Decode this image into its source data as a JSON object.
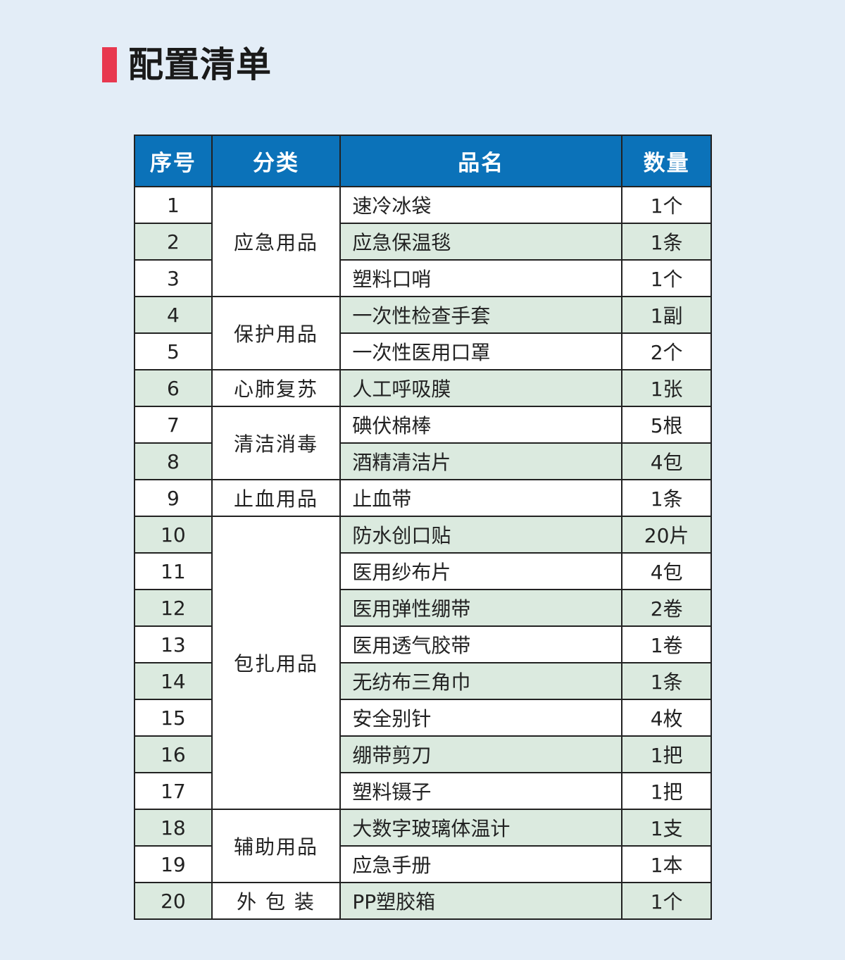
{
  "title": "配置清单",
  "colors": {
    "accent_red": "#e8384f",
    "header_blue": "#0b72b9",
    "row_green": "#dbeadf",
    "background": "#e3edf7"
  },
  "table": {
    "headers": [
      "序号",
      "分类",
      "品名",
      "数量"
    ],
    "groups": [
      {
        "category": "应急用品",
        "rows": [
          {
            "no": "1",
            "name": "速冷冰袋",
            "qty": "1个"
          },
          {
            "no": "2",
            "name": "应急保温毯",
            "qty": "1条"
          },
          {
            "no": "3",
            "name": "塑料口哨",
            "qty": "1个"
          }
        ]
      },
      {
        "category": "保护用品",
        "rows": [
          {
            "no": "4",
            "name": "一次性检查手套",
            "qty": "1副"
          },
          {
            "no": "5",
            "name": "一次性医用口罩",
            "qty": "2个"
          }
        ]
      },
      {
        "category": "心肺复苏",
        "rows": [
          {
            "no": "6",
            "name": "人工呼吸膜",
            "qty": "1张"
          }
        ]
      },
      {
        "category": "清洁消毒",
        "rows": [
          {
            "no": "7",
            "name": "碘伏棉棒",
            "qty": "5根"
          },
          {
            "no": "8",
            "name": "酒精清洁片",
            "qty": "4包"
          }
        ]
      },
      {
        "category": "止血用品",
        "rows": [
          {
            "no": "9",
            "name": "止血带",
            "qty": "1条"
          }
        ]
      },
      {
        "category": "包扎用品",
        "rows": [
          {
            "no": "10",
            "name": "防水创口贴",
            "qty": "20片"
          },
          {
            "no": "11",
            "name": "医用纱布片",
            "qty": "4包"
          },
          {
            "no": "12",
            "name": "医用弹性绷带",
            "qty": "2卷"
          },
          {
            "no": "13",
            "name": "医用透气胶带",
            "qty": "1卷"
          },
          {
            "no": "14",
            "name": "无纺布三角巾",
            "qty": "1条"
          },
          {
            "no": "15",
            "name": "安全别针",
            "qty": "4枚"
          },
          {
            "no": "16",
            "name": "绷带剪刀",
            "qty": "1把"
          },
          {
            "no": "17",
            "name": "塑料镊子",
            "qty": "1把"
          }
        ]
      },
      {
        "category": "辅助用品",
        "rows": [
          {
            "no": "18",
            "name": "大数字玻璃体温计",
            "qty": "1支"
          },
          {
            "no": "19",
            "name": "应急手册",
            "qty": "1本"
          }
        ]
      },
      {
        "category": "外 包 装",
        "rows": [
          {
            "no": "20",
            "name": "PP塑胶箱",
            "qty": "1个"
          }
        ]
      }
    ]
  }
}
